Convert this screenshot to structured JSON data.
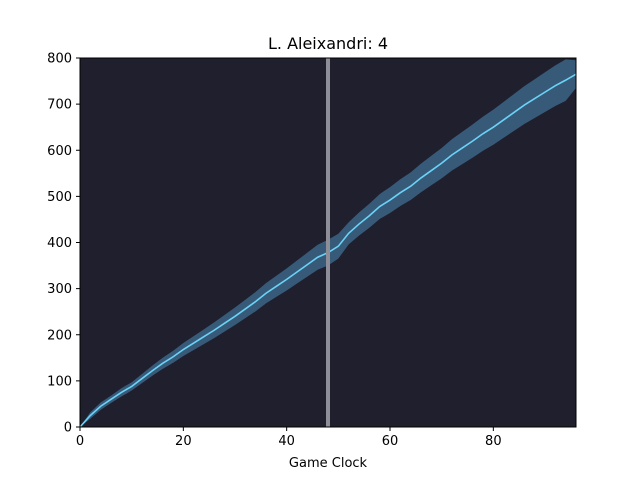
{
  "chart_data": {
    "type": "line",
    "title": "L. Aleixandri: 4",
    "xlabel": "Game Clock",
    "ylabel": "",
    "xlim": [
      0,
      96
    ],
    "ylim": [
      0,
      800
    ],
    "xticks": [
      0,
      20,
      40,
      60,
      80
    ],
    "yticks": [
      0,
      100,
      200,
      300,
      400,
      500,
      600,
      700,
      800
    ],
    "grid": false,
    "legend": "none",
    "background_color": "#1f1f2e",
    "line_color": "#6ad3f7",
    "band_color": "#4d8ab8",
    "vline": {
      "x": 48,
      "color": "#8e8e99"
    },
    "series": [
      {
        "x": [
          0,
          2,
          4,
          6,
          8,
          10,
          12,
          14,
          16,
          18,
          20,
          22,
          24,
          26,
          28,
          30,
          32,
          34,
          36,
          38,
          40,
          42,
          44,
          46,
          48,
          50,
          52,
          54,
          56,
          58,
          60,
          62,
          64,
          66,
          68,
          70,
          72,
          74,
          76,
          78,
          80,
          82,
          84,
          86,
          88,
          90,
          92,
          94,
          96
        ],
        "y": [
          0,
          25,
          45,
          60,
          75,
          88,
          105,
          122,
          138,
          152,
          168,
          182,
          196,
          210,
          225,
          240,
          256,
          272,
          290,
          305,
          320,
          336,
          352,
          368,
          378,
          392,
          420,
          440,
          458,
          478,
          492,
          508,
          522,
          540,
          556,
          572,
          590,
          605,
          620,
          636,
          650,
          666,
          682,
          698,
          712,
          726,
          740,
          752,
          765
        ],
        "lower": [
          0,
          18,
          37,
          52,
          66,
          79,
          95,
          111,
          126,
          139,
          154,
          167,
          180,
          193,
          207,
          221,
          236,
          251,
          268,
          282,
          296,
          311,
          326,
          341,
          350,
          365,
          396,
          415,
          432,
          451,
          464,
          479,
          492,
          509,
          524,
          539,
          556,
          570,
          584,
          599,
          612,
          627,
          642,
          657,
          670,
          683,
          696,
          707,
          735
        ],
        "upper": [
          0,
          32,
          53,
          68,
          84,
          97,
          115,
          133,
          150,
          165,
          182,
          197,
          212,
          227,
          243,
          259,
          276,
          293,
          312,
          328,
          344,
          361,
          378,
          395,
          406,
          419,
          444,
          465,
          484,
          505,
          520,
          537,
          552,
          571,
          588,
          605,
          624,
          640,
          656,
          673,
          688,
          705,
          722,
          739,
          754,
          769,
          784,
          797,
          795
        ]
      }
    ]
  }
}
